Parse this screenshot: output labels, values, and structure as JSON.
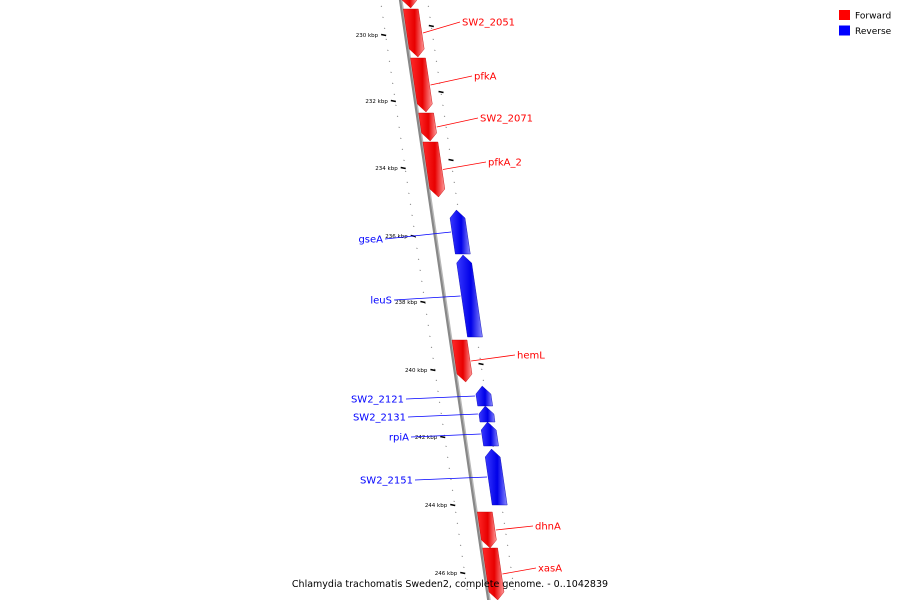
{
  "legend": [
    {
      "label": "Forward",
      "color": "#ff0000"
    },
    {
      "label": "Reverse",
      "color": "#0000ff"
    }
  ],
  "caption": "Chlamydia trachomatis Sweden2, complete genome. - 0..1042839",
  "ticks": [
    {
      "label": "230 kbp"
    },
    {
      "label": "232 kbp"
    },
    {
      "label": "234 kbp"
    },
    {
      "label": "236 kbp"
    },
    {
      "label": "238 kbp"
    },
    {
      "label": "240 kbp"
    },
    {
      "label": "242 kbp"
    },
    {
      "label": "244 kbp"
    },
    {
      "label": "246 kbp"
    }
  ],
  "genes": [
    {
      "name": "",
      "strand": "forward"
    },
    {
      "name": "SW2_2051",
      "strand": "forward"
    },
    {
      "name": "pfkA",
      "strand": "forward"
    },
    {
      "name": "SW2_2071",
      "strand": "forward"
    },
    {
      "name": "pfkA_2",
      "strand": "forward"
    },
    {
      "name": "gseA",
      "strand": "reverse"
    },
    {
      "name": "leuS",
      "strand": "reverse"
    },
    {
      "name": "hemL",
      "strand": "forward"
    },
    {
      "name": "SW2_2121",
      "strand": "reverse"
    },
    {
      "name": "SW2_2131",
      "strand": "reverse"
    },
    {
      "name": "rpiA",
      "strand": "reverse"
    },
    {
      "name": "SW2_2151",
      "strand": "reverse"
    },
    {
      "name": "dhnA",
      "strand": "forward"
    },
    {
      "name": "xasA",
      "strand": "forward"
    }
  ],
  "colors": {
    "forward": "#ff0000",
    "reverse": "#0000ff",
    "backbone": "#888888"
  }
}
